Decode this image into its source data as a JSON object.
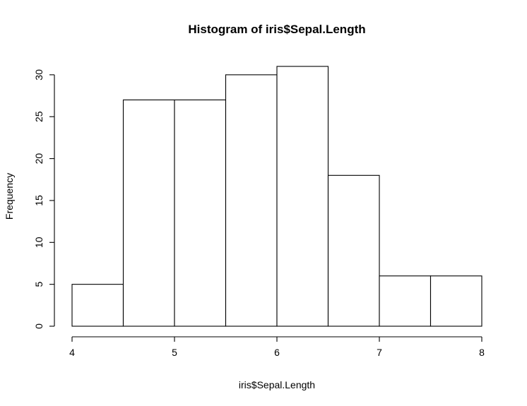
{
  "chart_data": {
    "type": "bar",
    "title": "Histogram of iris$Sepal.Length",
    "xlabel": "iris$Sepal.Length",
    "ylabel": "Frequency",
    "bins": [
      {
        "from": 4.0,
        "to": 4.5,
        "count": 5
      },
      {
        "from": 4.5,
        "to": 5.0,
        "count": 27
      },
      {
        "from": 5.0,
        "to": 5.5,
        "count": 27
      },
      {
        "from": 5.5,
        "to": 6.0,
        "count": 30
      },
      {
        "from": 6.0,
        "to": 6.5,
        "count": 31
      },
      {
        "from": 6.5,
        "to": 7.0,
        "count": 18
      },
      {
        "from": 7.0,
        "to": 7.5,
        "count": 6
      },
      {
        "from": 7.5,
        "to": 8.0,
        "count": 6
      }
    ],
    "xlim": [
      4,
      8
    ],
    "ylim": [
      0,
      31
    ],
    "xticks": [
      4,
      5,
      6,
      7,
      8
    ],
    "yticks": [
      0,
      5,
      10,
      15,
      20,
      25,
      30
    ],
    "grid": false,
    "legend": "none"
  }
}
